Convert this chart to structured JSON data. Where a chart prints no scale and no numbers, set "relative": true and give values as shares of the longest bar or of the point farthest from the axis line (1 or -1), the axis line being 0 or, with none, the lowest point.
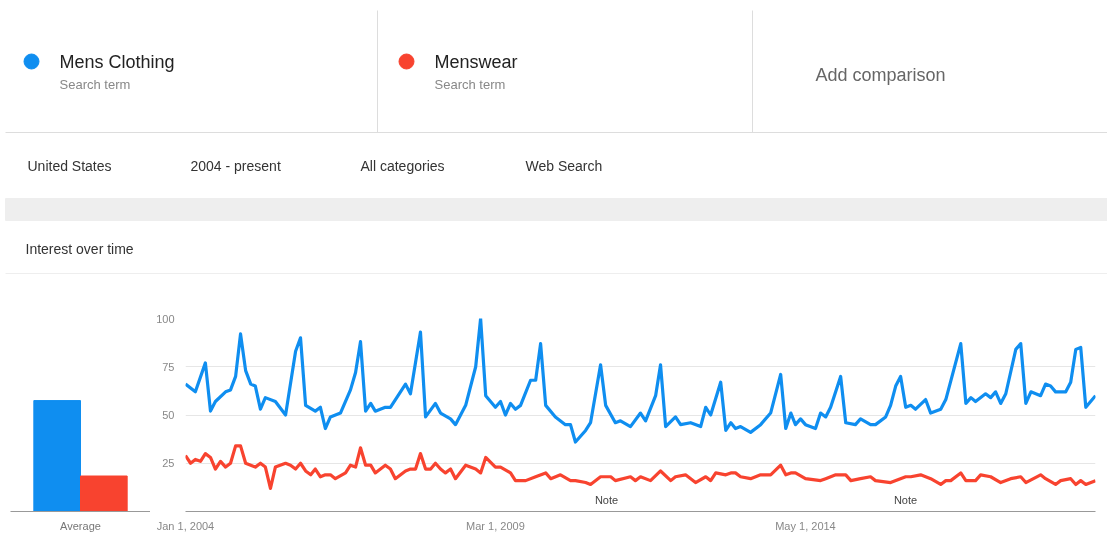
{
  "chart_data": [
    {
      "type": "bar",
      "relative": true,
      "categories": [
        "Average"
      ],
      "series": [
        {
          "color": "#0f8ef0",
          "values": [
            1
          ]
        },
        {
          "color": "#f8432f",
          "values": [
            0.32
          ]
        }
      ]
    },
    {
      "type": "line",
      "title": "Interest over time",
      "legend": "top",
      "grid": "y",
      "marker": "none",
      "line_style": "solid",
      "xlim": [
        "2004-01",
        "2019-03"
      ],
      "ylim": [
        0,
        100
      ],
      "yticks": [
        25,
        50,
        75,
        100
      ],
      "xticks": [
        {
          "value": "2004-01-01",
          "label": "Jan 1, 2004"
        },
        {
          "value": "2009-03-01",
          "label": "Mar 1, 2009"
        },
        {
          "value": "2014-05-01",
          "label": "May 1, 2014"
        }
      ],
      "series": [
        {
          "name": "Mens Clothing",
          "color": "#0f8ef0",
          "x": [
            "2004-01",
            "2004-03",
            "2004-05",
            "2004-06",
            "2004-07",
            "2004-09",
            "2004-10",
            "2004-11",
            "2004-12",
            "2005-01",
            "2005-02",
            "2005-03",
            "2005-04",
            "2005-05",
            "2005-07",
            "2005-09",
            "2005-11",
            "2005-12",
            "2006-01",
            "2006-03",
            "2006-04",
            "2006-05",
            "2006-06",
            "2006-08",
            "2006-10",
            "2006-11",
            "2006-12",
            "2007-01",
            "2007-02",
            "2007-03",
            "2007-05",
            "2007-06",
            "2007-09",
            "2007-10",
            "2007-12",
            "2008-01",
            "2008-03",
            "2008-04",
            "2008-06",
            "2008-07",
            "2008-09",
            "2008-11",
            "2008-12",
            "2009-01",
            "2009-03",
            "2009-04",
            "2009-05",
            "2009-06",
            "2009-07",
            "2009-08",
            "2009-10",
            "2009-11",
            "2009-12",
            "2010-01",
            "2010-03",
            "2010-05",
            "2010-06",
            "2010-07",
            "2010-09",
            "2010-10",
            "2010-12",
            "2011-01",
            "2011-03",
            "2011-04",
            "2011-06",
            "2011-08",
            "2011-09",
            "2011-11",
            "2011-12",
            "2012-01",
            "2012-03",
            "2012-04",
            "2012-06",
            "2012-08",
            "2012-09",
            "2012-10",
            "2012-12",
            "2013-01",
            "2013-02",
            "2013-03",
            "2013-04",
            "2013-06",
            "2013-08",
            "2013-10",
            "2013-12",
            "2014-01",
            "2014-02",
            "2014-03",
            "2014-04",
            "2014-05",
            "2014-07",
            "2014-08",
            "2014-09",
            "2014-10",
            "2014-12",
            "2015-01",
            "2015-03",
            "2015-04",
            "2015-06",
            "2015-07",
            "2015-09",
            "2015-10",
            "2015-11",
            "2015-12",
            "2016-01",
            "2016-02",
            "2016-03",
            "2016-05",
            "2016-06",
            "2016-08",
            "2016-09",
            "2016-12",
            "2017-01",
            "2017-02",
            "2017-03",
            "2017-05",
            "2017-06",
            "2017-07",
            "2017-08",
            "2017-09",
            "2017-11",
            "2017-12",
            "2018-01",
            "2018-02",
            "2018-04",
            "2018-05",
            "2018-06",
            "2018-07",
            "2018-09",
            "2018-10",
            "2018-11",
            "2018-12",
            "2019-01",
            "2019-03"
          ],
          "values": [
            66,
            62,
            77,
            52,
            57,
            62,
            63,
            70,
            92,
            73,
            66,
            65,
            53,
            59,
            57,
            50,
            83,
            90,
            55,
            52,
            54,
            43,
            49,
            51,
            63,
            72,
            88,
            52,
            56,
            52,
            54,
            54,
            66,
            61,
            93,
            49,
            56,
            51,
            48,
            45,
            55,
            75,
            100,
            60,
            54,
            57,
            50,
            56,
            53,
            55,
            68,
            68,
            87,
            55,
            49,
            45,
            45,
            36,
            42,
            46,
            76,
            55,
            46,
            47,
            44,
            51,
            47,
            60,
            76,
            44,
            49,
            45,
            46,
            44,
            54,
            50,
            67,
            42,
            46,
            43,
            44,
            41,
            45,
            51,
            71,
            43,
            51,
            45,
            48,
            45,
            43,
            51,
            49,
            54,
            70,
            46,
            45,
            48,
            45,
            45,
            49,
            55,
            65,
            70,
            54,
            55,
            53,
            58,
            51,
            53,
            58,
            87,
            56,
            59,
            57,
            61,
            59,
            62,
            56,
            61,
            84,
            87,
            56,
            62,
            60,
            66,
            65,
            62,
            62,
            67,
            84,
            85,
            54,
            60
          ]
        },
        {
          "name": "Menswear",
          "color": "#f8432f",
          "x": [
            "2004-01",
            "2004-02",
            "2004-03",
            "2004-04",
            "2004-05",
            "2004-06",
            "2004-07",
            "2004-08",
            "2004-09",
            "2004-10",
            "2004-11",
            "2004-12",
            "2005-01",
            "2005-02",
            "2005-03",
            "2005-04",
            "2005-05",
            "2005-06",
            "2005-07",
            "2005-09",
            "2005-10",
            "2005-11",
            "2005-12",
            "2006-01",
            "2006-02",
            "2006-03",
            "2006-04",
            "2006-05",
            "2006-06",
            "2006-07",
            "2006-09",
            "2006-10",
            "2006-11",
            "2006-12",
            "2007-01",
            "2007-02",
            "2007-03",
            "2007-05",
            "2007-06",
            "2007-07",
            "2007-09",
            "2007-10",
            "2007-11",
            "2007-12",
            "2008-01",
            "2008-02",
            "2008-03",
            "2008-04",
            "2008-05",
            "2008-06",
            "2008-07",
            "2008-09",
            "2008-11",
            "2008-12",
            "2009-01",
            "2009-03",
            "2009-04",
            "2009-06",
            "2009-07",
            "2009-09",
            "2009-11",
            "2010-01",
            "2010-02",
            "2010-04",
            "2010-06",
            "2010-07",
            "2010-09",
            "2010-10",
            "2010-12",
            "2011-02",
            "2011-03",
            "2011-06",
            "2011-07",
            "2011-08",
            "2011-10",
            "2011-12",
            "2012-02",
            "2012-03",
            "2012-05",
            "2012-07",
            "2012-09",
            "2012-10",
            "2012-11",
            "2013-01",
            "2013-02",
            "2013-03",
            "2013-04",
            "2013-06",
            "2013-08",
            "2013-10",
            "2013-12",
            "2014-01",
            "2014-02",
            "2014-03",
            "2014-05",
            "2014-08",
            "2014-09",
            "2014-11",
            "2015-01",
            "2015-02",
            "2015-04",
            "2015-06",
            "2015-07",
            "2015-10",
            "2016-01",
            "2016-02",
            "2016-04",
            "2016-06",
            "2016-08",
            "2016-09",
            "2016-10",
            "2016-12",
            "2017-01",
            "2017-03",
            "2017-04",
            "2017-06",
            "2017-08",
            "2017-10",
            "2017-12",
            "2018-01",
            "2018-04",
            "2018-05",
            "2018-07",
            "2018-08",
            "2018-10",
            "2018-11",
            "2018-12",
            "2019-01",
            "2019-03"
          ],
          "values": [
            29,
            25,
            27,
            26,
            30,
            28,
            22,
            26,
            23,
            25,
            34,
            34,
            25,
            24,
            23,
            25,
            23,
            12,
            23,
            25,
            24,
            22,
            25,
            21,
            19,
            22,
            18,
            19,
            19,
            17,
            20,
            24,
            23,
            33,
            24,
            24,
            20,
            24,
            22,
            17,
            21,
            22,
            22,
            30,
            22,
            22,
            25,
            22,
            20,
            22,
            17,
            24,
            22,
            20,
            28,
            23,
            23,
            20,
            16,
            16,
            18,
            20,
            17,
            19,
            16,
            16,
            15,
            14,
            18,
            18,
            16,
            18,
            16,
            18,
            16,
            21,
            16,
            18,
            19,
            15,
            18,
            16,
            20,
            19,
            20,
            20,
            18,
            17,
            19,
            19,
            24,
            19,
            20,
            20,
            17,
            16,
            17,
            19,
            19,
            16,
            17,
            18,
            16,
            15,
            18,
            18,
            19,
            17,
            14,
            16,
            16,
            20,
            16,
            16,
            19,
            18,
            15,
            17,
            18,
            15,
            19,
            17,
            14,
            16,
            17,
            14,
            16,
            14,
            16
          ]
        }
      ],
      "annotations": [
        "Search term",
        "Search term",
        "Add comparison",
        "United States",
        "2004 - present",
        "All categories",
        "Web Search",
        "Note",
        "Note"
      ]
    }
  ]
}
